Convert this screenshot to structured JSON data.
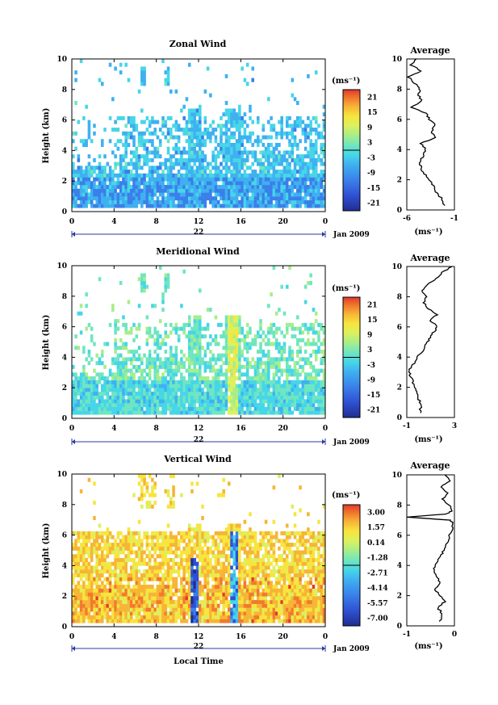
{
  "colors": {
    "scale": [
      "#1f2e8f",
      "#2f4fd0",
      "#3a7fea",
      "#3fb0f0",
      "#46d6e8",
      "#6fe6c0",
      "#a6ee8a",
      "#dcf060",
      "#f7e53e",
      "#f6b536",
      "#f2792e",
      "#e03a2a"
    ],
    "background": "#ffffff",
    "axis": "#000000"
  },
  "chart_data": [
    {
      "id": "zonal",
      "type": "heatmap",
      "title": "Zonal Wind",
      "ylabel": "Height (km)",
      "xlabel": "",
      "x_ticks": [
        "0",
        "4",
        "8",
        "12",
        "16",
        "20",
        "0"
      ],
      "y_ticks": [
        "0",
        "2",
        "4",
        "6",
        "8",
        "10"
      ],
      "date_label": "22",
      "month_label": "Jan 2009",
      "colorbar_unit": "(ms⁻¹)",
      "colorbar_ticks": [
        "21",
        "15",
        "9",
        "3",
        "-3",
        "-9",
        "-15",
        "-21"
      ],
      "avg_title": "Average",
      "avg_xticks": [
        "-6",
        "-1"
      ],
      "avg_unit": "(ms⁻¹)",
      "xlim": [
        0,
        24
      ],
      "ylim": [
        0,
        10
      ],
      "clim": [
        -24,
        24
      ],
      "base_value": -8,
      "avg_profile": {
        "heights": [
          0.3,
          0.8,
          1.2,
          1.6,
          2.0,
          2.4,
          2.8,
          3.2,
          3.6,
          4.0,
          4.4,
          4.8,
          5.2,
          5.6,
          6.0,
          6.4,
          6.8,
          7.2,
          7.6,
          8.0,
          8.4,
          8.8,
          9.2,
          9.6,
          10.0
        ],
        "values": [
          -2.0,
          -2.4,
          -3.0,
          -3.2,
          -3.6,
          -4.2,
          -4.5,
          -4.6,
          -4.3,
          -4.0,
          -4.5,
          -3.0,
          -3.4,
          -3.0,
          -3.6,
          -4.0,
          -5.6,
          -4.4,
          -4.8,
          -4.6,
          -5.2,
          -5.8,
          -4.4,
          -5.6,
          -5.0
        ],
        "xlim": [
          -6,
          -1
        ]
      }
    },
    {
      "id": "meridional",
      "type": "heatmap",
      "title": "Meridional Wind",
      "ylabel": "Height (km)",
      "xlabel": "",
      "x_ticks": [
        "0",
        "4",
        "8",
        "12",
        "16",
        "20",
        "0"
      ],
      "y_ticks": [
        "0",
        "2",
        "4",
        "6",
        "8",
        "10"
      ],
      "date_label": "22",
      "month_label": "Jan 2009",
      "colorbar_unit": "(ms⁻¹)",
      "colorbar_ticks": [
        "21",
        "15",
        "9",
        "3",
        "-3",
        "-9",
        "-15",
        "-21"
      ],
      "avg_title": "Average",
      "avg_xticks": [
        "-1",
        "3"
      ],
      "avg_unit": "(ms⁻¹)",
      "xlim": [
        0,
        24
      ],
      "ylim": [
        0,
        10
      ],
      "clim": [
        -24,
        24
      ],
      "base_value": -2,
      "avg_profile": {
        "heights": [
          0.3,
          0.8,
          1.2,
          1.6,
          2.0,
          2.4,
          2.8,
          3.2,
          3.6,
          4.0,
          4.4,
          4.8,
          5.2,
          5.6,
          6.0,
          6.4,
          6.8,
          7.2,
          7.6,
          8.0,
          8.4,
          8.8,
          9.2,
          9.6,
          10.0
        ],
        "values": [
          0.1,
          0.2,
          0.0,
          -0.2,
          -0.3,
          -0.5,
          -0.7,
          -0.8,
          -0.4,
          -0.1,
          0.3,
          0.6,
          0.9,
          1.2,
          1.6,
          1.0,
          1.5,
          0.8,
          0.4,
          0.6,
          0.2,
          0.8,
          1.4,
          2.0,
          2.8
        ],
        "xlim": [
          -1,
          3
        ]
      }
    },
    {
      "id": "vertical",
      "type": "heatmap",
      "title": "Vertical Wind",
      "ylabel": "Height (km)",
      "xlabel": "Local Time",
      "x_ticks": [
        "0",
        "4",
        "8",
        "12",
        "16",
        "20",
        "0"
      ],
      "y_ticks": [
        "0",
        "2",
        "4",
        "6",
        "8",
        "10"
      ],
      "date_label": "22",
      "month_label": "Jan 2009",
      "colorbar_unit": "(ms⁻¹)",
      "colorbar_ticks": [
        "3.00",
        "1.57",
        "0.14",
        "-1.28",
        "-2.71",
        "-4.14",
        "-5.57",
        "-7.00"
      ],
      "avg_title": "Average",
      "avg_xticks": [
        "-1",
        "0"
      ],
      "avg_unit": "(ms⁻¹)",
      "xlim": [
        0,
        24
      ],
      "ylim": [
        0,
        10
      ],
      "clim": [
        -7.7,
        3.7
      ],
      "base_value": 0.6,
      "avg_profile": {
        "heights": [
          0.3,
          0.8,
          1.2,
          1.6,
          2.0,
          2.4,
          2.8,
          3.2,
          3.6,
          4.0,
          4.4,
          4.8,
          5.2,
          5.6,
          6.0,
          6.4,
          6.8,
          7.0,
          7.2,
          7.4,
          7.6,
          8.0,
          8.4,
          8.8,
          9.2,
          9.6,
          10.0
        ],
        "values": [
          -0.3,
          -0.25,
          -0.35,
          -0.2,
          -0.3,
          -0.4,
          -0.3,
          -0.35,
          -0.45,
          -0.4,
          -0.35,
          -0.25,
          -0.2,
          -0.15,
          -0.1,
          -0.05,
          -0.02,
          -0.1,
          -1.0,
          -0.2,
          -0.05,
          -0.1,
          -0.25,
          -0.15,
          -0.3,
          -0.1,
          -0.2
        ],
        "xlim": [
          -1,
          0
        ]
      }
    }
  ]
}
